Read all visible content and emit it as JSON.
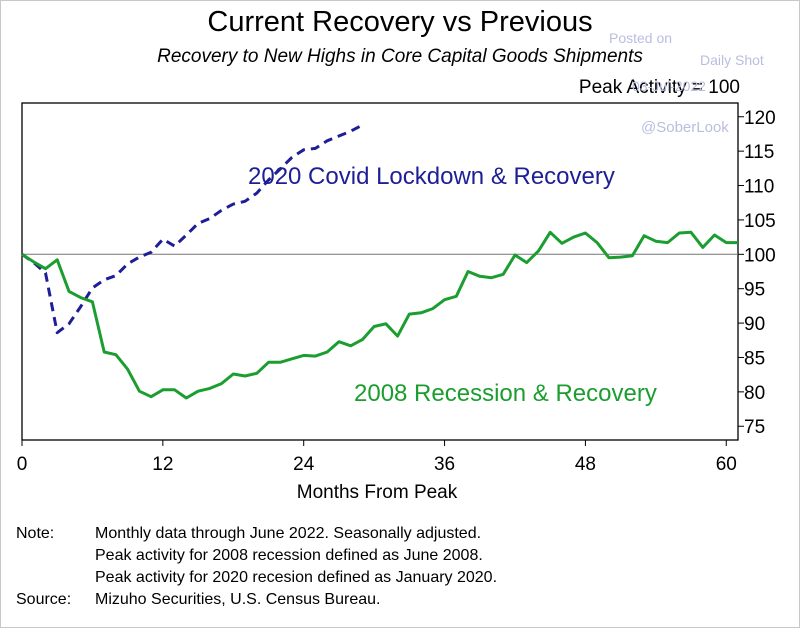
{
  "header": {
    "title": "Current Recovery vs Previous",
    "subtitle": "Recovery to New Highs in Core Capital Goods Shipments",
    "peak_note": "Peak Activity = 100"
  },
  "watermark": {
    "posted_on": "Posted on",
    "source": "Daily Shot",
    "date": "03-Jul-2022",
    "handle": "@SoberLook"
  },
  "footnotes": [
    {
      "key": "Note:",
      "text": "Monthly data through June 2022. Seasonally adjusted."
    },
    {
      "key": "",
      "text": "Peak activity for 2008 recession defined as June 2008."
    },
    {
      "key": "",
      "text": "Peak activity for 2020 recesion defined as January 2020."
    },
    {
      "key": "Source:",
      "text": "Mizuho Securities, U.S. Census Bureau."
    }
  ],
  "colors": {
    "covid": "#1e1e96",
    "gfc": "#1b9e2f",
    "reference": "#777777"
  },
  "chart_data": {
    "type": "line",
    "xlabel": "Months From Peak",
    "ylabel": "",
    "xlim": [
      0,
      61
    ],
    "ylim": [
      73,
      122
    ],
    "x_ticks": [
      0,
      12,
      24,
      36,
      48,
      60
    ],
    "y_ticks": [
      75,
      80,
      85,
      90,
      95,
      100,
      105,
      110,
      115,
      120
    ],
    "y_axis_side": "right",
    "reference_line": 100,
    "series": [
      {
        "name": "2020 Covid Lockdown & Recovery",
        "style": "dashed",
        "color": "#1e1e96",
        "x": [
          0,
          1,
          2,
          3,
          4,
          5,
          6,
          7,
          8,
          9,
          10,
          11,
          12,
          13,
          14,
          15,
          16,
          17,
          18,
          19,
          20,
          21,
          22,
          23,
          24,
          25,
          26,
          27,
          28,
          29
        ],
        "y": [
          100,
          98.8,
          97.3,
          88.6,
          89.9,
          92.4,
          95.1,
          96.3,
          96.9,
          98.6,
          99.6,
          100.3,
          102.2,
          101.2,
          102.8,
          104.5,
          105.2,
          106.4,
          107.3,
          107.7,
          108.9,
          110.8,
          112.4,
          114.1,
          115.2,
          115.4,
          116.5,
          117.2,
          117.9,
          118.8
        ]
      },
      {
        "name": "2008 Recession & Recovery",
        "style": "solid",
        "color": "#1b9e2f",
        "x": [
          0,
          1,
          2,
          3,
          4,
          5,
          6,
          7,
          8,
          9,
          10,
          11,
          12,
          13,
          14,
          15,
          16,
          17,
          18,
          19,
          20,
          21,
          22,
          23,
          24,
          25,
          26,
          27,
          28,
          29,
          30,
          31,
          32,
          33,
          34,
          35,
          36,
          37,
          38,
          39,
          40,
          41,
          42,
          43,
          44,
          45,
          46,
          47,
          48,
          49,
          50,
          51,
          52,
          53,
          54,
          55,
          56,
          57,
          58,
          59,
          60,
          61
        ],
        "y": [
          100,
          98.9,
          97.9,
          99.2,
          94.6,
          93.7,
          93.1,
          85.8,
          85.4,
          83.3,
          80.1,
          79.3,
          80.3,
          80.3,
          79.1,
          80.1,
          80.5,
          81.2,
          82.6,
          82.3,
          82.7,
          84.3,
          84.3,
          84.8,
          85.3,
          85.2,
          85.8,
          87.3,
          86.7,
          87.6,
          89.5,
          89.9,
          88.1,
          91.3,
          91.5,
          92.1,
          93.4,
          93.9,
          97.5,
          96.8,
          96.6,
          97.1,
          99.9,
          98.8,
          100.5,
          103.2,
          101.6,
          102.5,
          103.1,
          101.7,
          99.5,
          99.6,
          99.8,
          102.7,
          101.9,
          101.7,
          103.1,
          103.2,
          101.0,
          102.8,
          101.7,
          101.7
        ]
      }
    ],
    "annotations": [
      {
        "text": "2020 Covid Lockdown & Recovery",
        "series": 0
      },
      {
        "text": "2008 Recession & Recovery",
        "series": 1
      }
    ]
  }
}
